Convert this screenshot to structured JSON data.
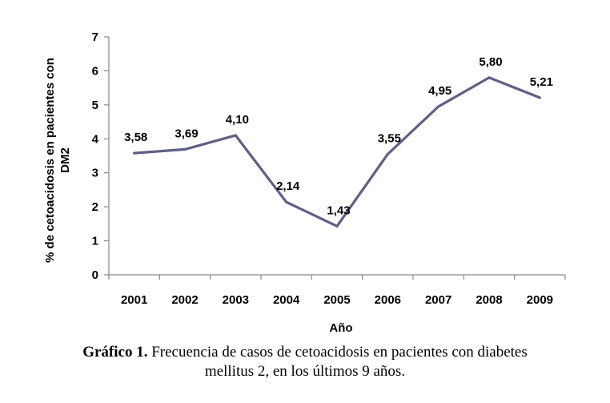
{
  "chart_data": {
    "type": "line",
    "categories": [
      "2001",
      "2002",
      "2003",
      "2004",
      "2005",
      "2006",
      "2007",
      "2008",
      "2009"
    ],
    "series": [
      {
        "values": [
          3.58,
          3.69,
          4.1,
          2.14,
          1.43,
          3.55,
          4.95,
          5.8,
          5.21
        ],
        "data_labels": [
          "3,58",
          "3,69",
          "4,10",
          "2,14",
          "1,43",
          "3,55",
          "4,95",
          "5,80",
          "5,21"
        ]
      }
    ],
    "xlabel": "Año",
    "ylabel_lines": [
      "% de cetoacidosis en pacientes con",
      "DM2"
    ],
    "ylim": [
      0,
      7
    ],
    "yticks": [
      "0",
      "1",
      "2",
      "3",
      "4",
      "5",
      "6",
      "7"
    ],
    "grid": false,
    "line_color": "#5f6086"
  },
  "caption": {
    "label": "Gráfico 1.",
    "line1": "Frecuencia de casos de cetoacidosis en pacientes con diabetes",
    "line2": "mellitus 2, en los últimos 9 años."
  }
}
